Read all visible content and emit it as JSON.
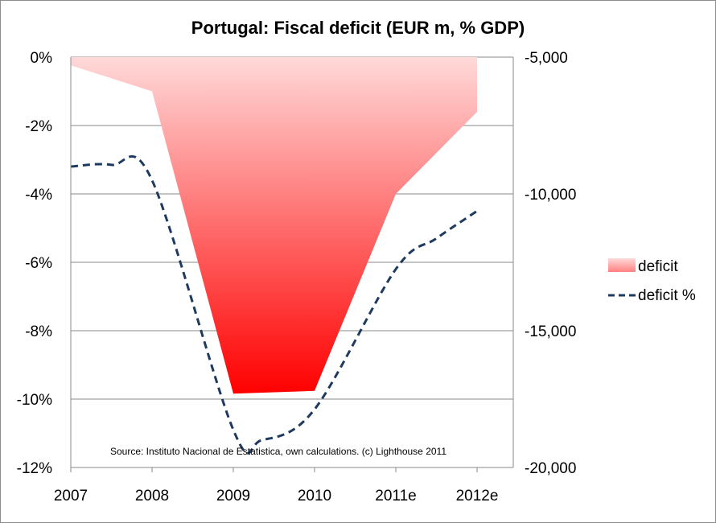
{
  "chart_data": {
    "type": "area+line",
    "title": "Portugal: Fiscal deficit (EUR m, % GDP)",
    "annotation": "Source: Instituto Nacional de Estatistica, own calculations. (c) Lighthouse 2011",
    "categories": [
      "2007",
      "2008",
      "2009",
      "2010",
      "2011e",
      "2012e"
    ],
    "y_left": {
      "ticks": [
        "0%",
        "-2%",
        "-4%",
        "-6%",
        "-8%",
        "-10%",
        "-12%"
      ],
      "range": [
        -12,
        0
      ]
    },
    "y_right": {
      "ticks": [
        "-5,000",
        "-10,000",
        "-15,000",
        "-20,000"
      ],
      "range": [
        -20000,
        -5000
      ]
    },
    "grid": true,
    "legend_position": "right",
    "series": [
      {
        "name": "deficit",
        "kind": "area",
        "axis": "right",
        "values": [
          -5300,
          -6250,
          -17300,
          -17200,
          -10000,
          -7000
        ],
        "color_top": "#ffd9d9",
        "color_bottom": "#ff0000"
      },
      {
        "name": "deficit %",
        "kind": "dashed-line",
        "axis": "left",
        "values": [
          -3.2,
          -3.6,
          -10.9,
          -10.3,
          -6.2,
          -4.5
        ],
        "extra_points": [
          {
            "x": 0.5,
            "y": -3.15
          },
          {
            "x": 2.35,
            "y": -11.2
          },
          {
            "x": 4.5,
            "y": -5.3
          }
        ],
        "color": "#1f3a5f"
      }
    ]
  }
}
